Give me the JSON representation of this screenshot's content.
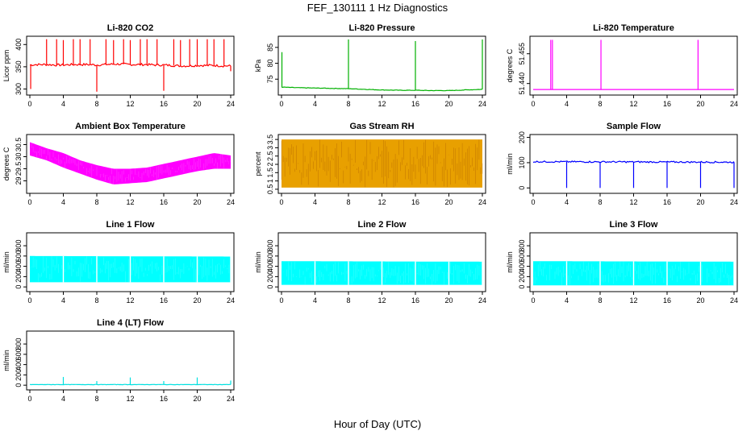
{
  "figure": {
    "title": "FEF_130111  1 Hz Diagnostics",
    "xlabel": "Hour of Day (UTC)"
  },
  "chart_data": [
    {
      "type": "line",
      "title": "Li-820 CO2",
      "ylabel": "Licor ppm",
      "color": "#ff0000",
      "xlim": [
        0,
        24
      ],
      "xticks": [
        0,
        4,
        8,
        12,
        16,
        20,
        24
      ],
      "ylim": [
        290,
        415
      ],
      "yticks": [
        300,
        350,
        400
      ],
      "baseline": [
        [
          0,
          354
        ],
        [
          1,
          355
        ],
        [
          2,
          355
        ],
        [
          3,
          354
        ],
        [
          4,
          354
        ],
        [
          5,
          355
        ],
        [
          6,
          355
        ],
        [
          7,
          355
        ],
        [
          8,
          354
        ],
        [
          9,
          355
        ],
        [
          10,
          356
        ],
        [
          11,
          356
        ],
        [
          12,
          355
        ],
        [
          13,
          355
        ],
        [
          14,
          355
        ],
        [
          15,
          354
        ],
        [
          16,
          354
        ],
        [
          17,
          353
        ],
        [
          18,
          352
        ],
        [
          19,
          352
        ],
        [
          20,
          353
        ],
        [
          21,
          353
        ],
        [
          22,
          353
        ],
        [
          23,
          352
        ],
        [
          24,
          352
        ]
      ],
      "noise": 2.5,
      "spikes": [
        [
          0.1,
          300
        ],
        [
          2.0,
          412
        ],
        [
          3.2,
          412
        ],
        [
          4.0,
          410
        ],
        [
          5.2,
          412
        ],
        [
          6.0,
          412
        ],
        [
          7.2,
          412
        ],
        [
          8.0,
          294
        ],
        [
          9.1,
          412
        ],
        [
          10.0,
          410
        ],
        [
          11.2,
          412
        ],
        [
          12.0,
          410
        ],
        [
          13.2,
          412
        ],
        [
          14.0,
          412
        ],
        [
          15.2,
          412
        ],
        [
          16.0,
          296
        ],
        [
          17.2,
          412
        ],
        [
          18.0,
          410
        ],
        [
          19.1,
          412
        ],
        [
          20.0,
          412
        ],
        [
          21.2,
          412
        ],
        [
          22.0,
          412
        ],
        [
          23.2,
          412
        ],
        [
          24.0,
          340
        ]
      ]
    },
    {
      "type": "line",
      "title": "Li-820 Pressure",
      "ylabel": "kPa",
      "color": "#00b000",
      "xlim": [
        0,
        24
      ],
      "xticks": [
        0,
        4,
        8,
        12,
        16,
        20,
        24
      ],
      "ylim": [
        70.5,
        88
      ],
      "yticks": [
        75,
        80,
        85
      ],
      "baseline": [
        [
          0,
          72.5
        ],
        [
          2,
          72.3
        ],
        [
          4,
          72.2
        ],
        [
          6,
          72.1
        ],
        [
          8,
          72.0
        ],
        [
          10,
          71.8
        ],
        [
          12,
          71.6
        ],
        [
          14,
          71.5
        ],
        [
          16,
          71.5
        ],
        [
          18,
          71.4
        ],
        [
          20,
          71.4
        ],
        [
          22,
          71.6
        ],
        [
          24,
          71.8
        ]
      ],
      "noise": 0.08,
      "spikes": [
        [
          0.05,
          83.5
        ],
        [
          8.0,
          87.5
        ],
        [
          16.0,
          87.0
        ],
        [
          24.0,
          87.5
        ]
      ]
    },
    {
      "type": "line",
      "title": "Li-820 Temperature",
      "ylabel": "degrees C",
      "color": "#ff00ff",
      "xlim": [
        0,
        24
      ],
      "xticks": [
        0,
        4,
        8,
        12,
        16,
        20,
        24
      ],
      "ylim": [
        51.435,
        51.463
      ],
      "yticks": [
        51.44,
        51.455
      ],
      "ytick_labels": [
        "51.440",
        "51.455"
      ],
      "baseline": [
        [
          0,
          51.437
        ],
        [
          24,
          51.437
        ]
      ],
      "noise": 0,
      "spikes": [
        [
          2.1,
          51.462
        ],
        [
          2.3,
          51.462
        ],
        [
          8.1,
          51.462
        ],
        [
          19.7,
          51.462
        ]
      ]
    },
    {
      "type": "area",
      "title": "Ambient Box Temperature",
      "ylabel": "degrees C",
      "color": "#ff00ff",
      "xlim": [
        0,
        24
      ],
      "xticks": [
        0,
        4,
        8,
        12,
        16,
        20,
        24
      ],
      "ylim": [
        28.55,
        30.85
      ],
      "yticks": [
        29.0,
        29.5,
        30.0,
        30.5
      ],
      "upper": [
        [
          0,
          30.6
        ],
        [
          2,
          30.35
        ],
        [
          4,
          30.15
        ],
        [
          6,
          29.85
        ],
        [
          8,
          29.65
        ],
        [
          10,
          29.5
        ],
        [
          12,
          29.5
        ],
        [
          14,
          29.55
        ],
        [
          16,
          29.7
        ],
        [
          18,
          29.85
        ],
        [
          20,
          30.0
        ],
        [
          22,
          30.15
        ],
        [
          24,
          30.05
        ]
      ],
      "lower": [
        [
          0,
          30.05
        ],
        [
          2,
          29.85
        ],
        [
          4,
          29.55
        ],
        [
          6,
          29.3
        ],
        [
          8,
          29.05
        ],
        [
          10,
          28.85
        ],
        [
          12,
          28.9
        ],
        [
          14,
          28.95
        ],
        [
          16,
          29.1
        ],
        [
          18,
          29.25
        ],
        [
          20,
          29.4
        ],
        [
          22,
          29.5
        ],
        [
          24,
          29.5
        ]
      ]
    },
    {
      "type": "area",
      "title": "Gas Stream RH",
      "ylabel": "percent",
      "color": "#e8a000",
      "dots": "#a05000",
      "xlim": [
        0,
        24
      ],
      "xticks": [
        0,
        4,
        8,
        12,
        16,
        20,
        24
      ],
      "ylim": [
        0.35,
        3.7
      ],
      "yticks": [
        0.5,
        1.0,
        1.5,
        2.0,
        2.5,
        3.0,
        3.5
      ],
      "upper": [
        [
          0,
          3.5
        ],
        [
          24,
          3.5
        ]
      ],
      "lower": [
        [
          0,
          0.6
        ],
        [
          24,
          0.6
        ]
      ]
    },
    {
      "type": "line",
      "title": "Sample Flow",
      "ylabel": "ml/min",
      "color": "#0000ff",
      "xlim": [
        0,
        24
      ],
      "xticks": [
        0,
        4,
        8,
        12,
        16,
        20,
        24
      ],
      "ylim": [
        -15,
        205
      ],
      "yticks": [
        0,
        100,
        200
      ],
      "baseline": [
        [
          0,
          104
        ],
        [
          24,
          102
        ]
      ],
      "noise": 3,
      "spikes": [
        [
          4.0,
          0
        ],
        [
          8.0,
          0
        ],
        [
          12.0,
          0
        ],
        [
          16.0,
          0
        ],
        [
          20.0,
          0
        ],
        [
          24.0,
          0
        ]
      ]
    },
    {
      "type": "area",
      "title": "Line 1 Flow",
      "ylabel": "ml/min",
      "color": "#00ffff",
      "xlim": [
        0,
        24
      ],
      "xticks": [
        0,
        4,
        8,
        12,
        16,
        20,
        24
      ],
      "ylim": [
        -60,
        1020
      ],
      "yticks": [
        0,
        200,
        400,
        600,
        800
      ],
      "upper": [
        [
          0,
          600
        ],
        [
          24,
          590
        ]
      ],
      "lower": [
        [
          0,
          90
        ],
        [
          24,
          90
        ]
      ],
      "gaps": [
        4,
        8,
        12,
        16,
        20,
        24
      ]
    },
    {
      "type": "area",
      "title": "Line 2 Flow",
      "ylabel": "ml/min",
      "color": "#00ffff",
      "xlim": [
        0,
        24
      ],
      "xticks": [
        0,
        4,
        8,
        12,
        16,
        20,
        24
      ],
      "ylim": [
        -60,
        1020
      ],
      "yticks": [
        0,
        200,
        400,
        600,
        800
      ],
      "upper": [
        [
          0,
          500
        ],
        [
          24,
          490
        ]
      ],
      "lower": [
        [
          0,
          40
        ],
        [
          24,
          40
        ]
      ],
      "gaps": [
        4,
        8,
        12,
        16,
        20,
        24
      ]
    },
    {
      "type": "area",
      "title": "Line 3 Flow",
      "ylabel": "ml/min",
      "color": "#00ffff",
      "xlim": [
        0,
        24
      ],
      "xticks": [
        0,
        4,
        8,
        12,
        16,
        20,
        24
      ],
      "ylim": [
        -60,
        1020
      ],
      "yticks": [
        0,
        200,
        400,
        600,
        800
      ],
      "upper": [
        [
          0,
          500
        ],
        [
          24,
          490
        ]
      ],
      "lower": [
        [
          0,
          30
        ],
        [
          24,
          30
        ]
      ],
      "gaps": [
        4,
        8,
        12,
        16,
        20,
        24
      ]
    },
    {
      "type": "line",
      "title": "Line 4 (LT) Flow",
      "ylabel": "ml/min",
      "color": "#00e0e0",
      "xlim": [
        0,
        24
      ],
      "xticks": [
        0,
        4,
        8,
        12,
        16,
        20,
        24
      ],
      "ylim": [
        -60,
        1020
      ],
      "yticks": [
        0,
        200,
        400,
        600,
        800
      ],
      "baseline": [
        [
          0,
          12
        ],
        [
          24,
          12
        ]
      ],
      "noise": 3,
      "spikes": [
        [
          4.0,
          160
        ],
        [
          8.0,
          80
        ],
        [
          12.0,
          150
        ],
        [
          16.0,
          80
        ],
        [
          20.0,
          150
        ],
        [
          24.0,
          90
        ]
      ]
    }
  ]
}
